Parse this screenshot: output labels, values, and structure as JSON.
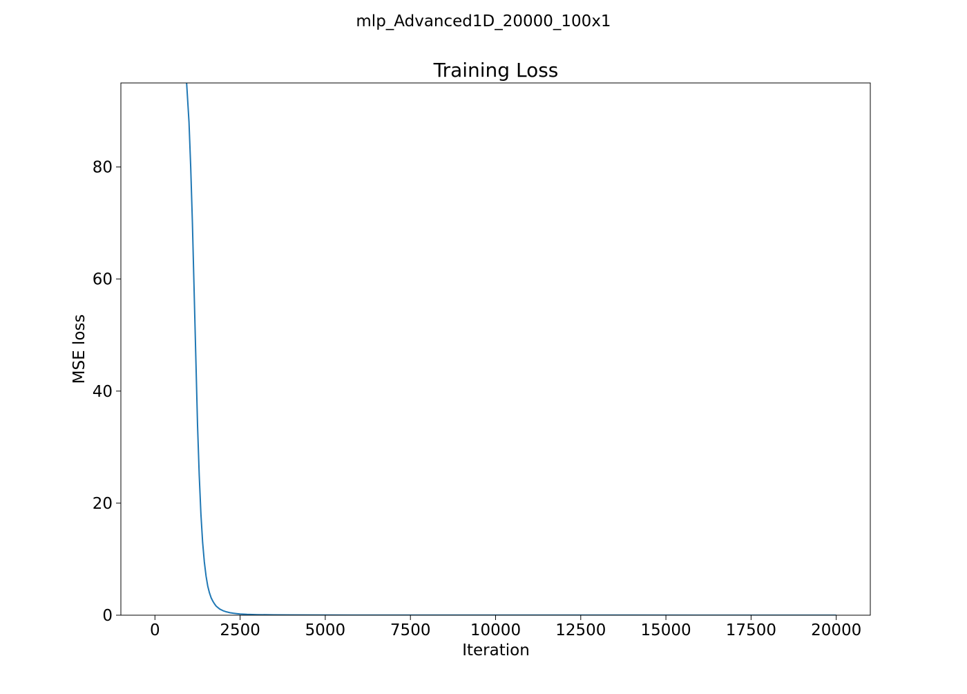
{
  "figure": {
    "suptitle": "mlp_Advanced1D_20000_100x1"
  },
  "chart_data": {
    "type": "line",
    "title": "Training Loss",
    "xlabel": "Iteration",
    "ylabel": "MSE loss",
    "xlim": [
      -1000,
      21000
    ],
    "ylim": [
      0,
      95
    ],
    "xticks": [
      0,
      2500,
      5000,
      7500,
      10000,
      12500,
      15000,
      17500,
      20000
    ],
    "xtick_labels": [
      "0",
      "2500",
      "5000",
      "7500",
      "10000",
      "12500",
      "15000",
      "17500",
      "20000"
    ],
    "yticks": [
      0,
      20,
      40,
      60,
      80
    ],
    "ytick_labels": [
      "0",
      "20",
      "40",
      "60",
      "80"
    ],
    "grid": false,
    "series": [
      {
        "color": "#1f77b4",
        "x": [
          800,
          900,
          1000,
          1050,
          1100,
          1150,
          1200,
          1250,
          1300,
          1350,
          1400,
          1450,
          1500,
          1550,
          1600,
          1650,
          1700,
          1750,
          1800,
          1900,
          2000,
          2100,
          2200,
          2300,
          2400,
          2500,
          2700,
          3000,
          3500,
          4000,
          5000,
          6000,
          8000,
          10000,
          12000,
          14000,
          16000,
          18000,
          20000
        ],
        "y": [
          120,
          98,
          88,
          80,
          70,
          58,
          46,
          34,
          25,
          18,
          13,
          9.5,
          7,
          5.2,
          4,
          3.1,
          2.5,
          2,
          1.6,
          1.1,
          0.8,
          0.6,
          0.45,
          0.35,
          0.28,
          0.22,
          0.15,
          0.1,
          0.06,
          0.04,
          0.025,
          0.02,
          0.015,
          0.012,
          0.01,
          0.009,
          0.008,
          0.007,
          0.006
        ]
      }
    ]
  }
}
